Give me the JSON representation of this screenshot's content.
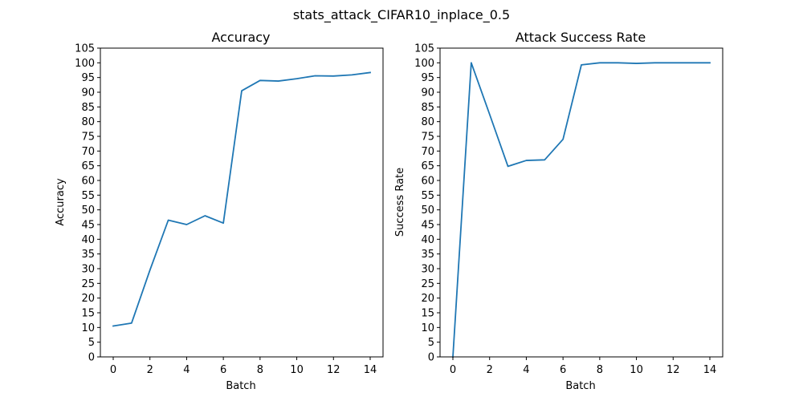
{
  "figure": {
    "suptitle": "stats_attack_CIFAR10_inplace_0.5"
  },
  "chart_data": [
    {
      "type": "line",
      "title": "Accuracy",
      "xlabel": "Batch",
      "ylabel": "Accuracy",
      "xlim": [
        -0.7,
        14.7
      ],
      "ylim": [
        0,
        105
      ],
      "xticks": [
        0,
        2,
        4,
        6,
        8,
        10,
        12,
        14
      ],
      "yticks": [
        0,
        5,
        10,
        15,
        20,
        25,
        30,
        35,
        40,
        45,
        50,
        55,
        60,
        65,
        70,
        75,
        80,
        85,
        90,
        95,
        100,
        105
      ],
      "grid": false,
      "line_color": "#1f77b4",
      "x": [
        0,
        1,
        2,
        3,
        4,
        5,
        6,
        7,
        8,
        9,
        10,
        11,
        12,
        13,
        14
      ],
      "series": [
        {
          "values": [
            10.5,
            11.5,
            29.5,
            46.5,
            45.0,
            48.0,
            45.5,
            90.5,
            94.0,
            93.8,
            94.6,
            95.6,
            95.5,
            95.9,
            96.7
          ]
        }
      ]
    },
    {
      "type": "line",
      "title": "Attack Success Rate",
      "xlabel": "Batch",
      "ylabel": "Success Rate",
      "xlim": [
        -0.7,
        14.7
      ],
      "ylim": [
        0,
        105
      ],
      "xticks": [
        0,
        2,
        4,
        6,
        8,
        10,
        12,
        14
      ],
      "yticks": [
        0,
        5,
        10,
        15,
        20,
        25,
        30,
        35,
        40,
        45,
        50,
        55,
        60,
        65,
        70,
        75,
        80,
        85,
        90,
        95,
        100,
        105
      ],
      "grid": false,
      "line_color": "#1f77b4",
      "x": [
        0,
        1,
        2,
        3,
        4,
        5,
        6,
        7,
        8,
        9,
        10,
        11,
        12,
        13,
        14
      ],
      "series": [
        {
          "values": [
            0,
            100,
            82.5,
            64.8,
            66.8,
            67.0,
            74.0,
            99.3,
            100,
            100,
            99.8,
            100,
            100,
            100,
            100
          ]
        }
      ]
    }
  ]
}
